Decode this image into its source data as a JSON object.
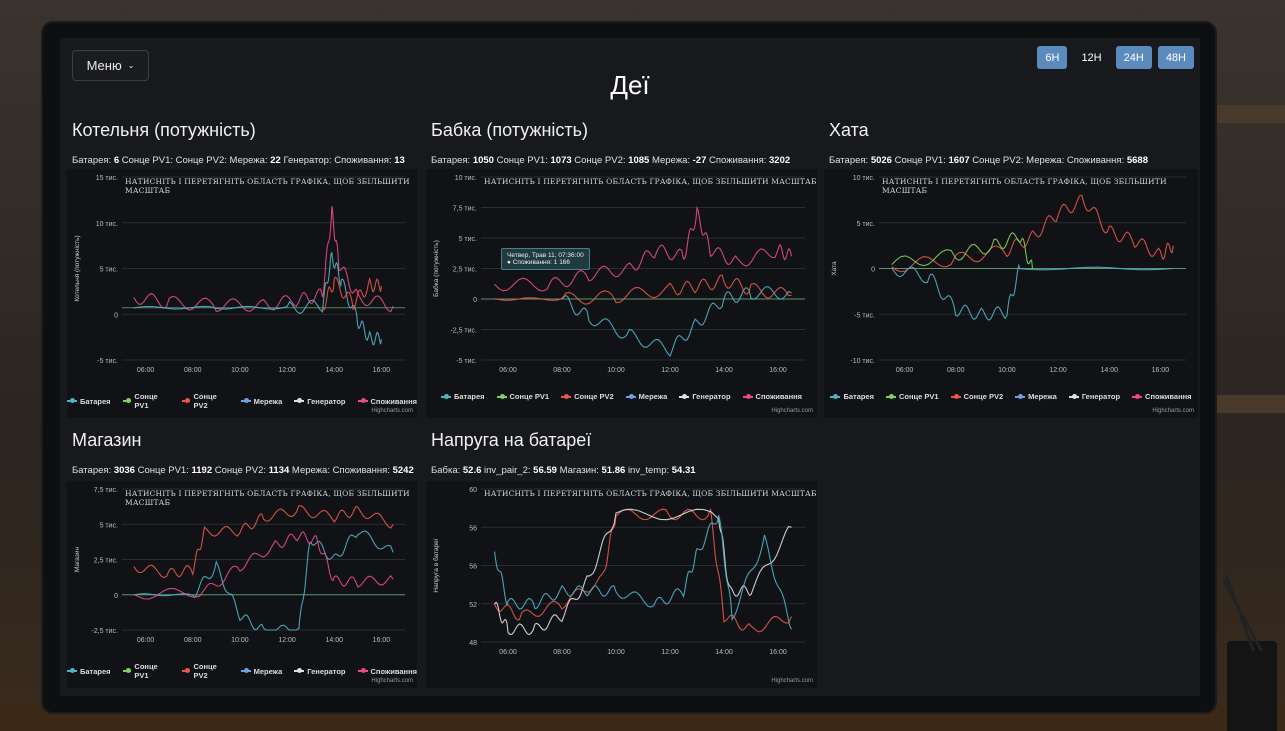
{
  "header": {
    "title": "Деї",
    "menu_label": "Меню",
    "ranges": [
      {
        "label": "6H",
        "active": true
      },
      {
        "label": "12H",
        "active": false
      },
      {
        "label": "24H",
        "active": true
      },
      {
        "label": "48H",
        "active": true
      }
    ]
  },
  "common": {
    "zoom_hint": "НАТИСНІТЬ І ПЕРЕТЯГНІТЬ ОБЛАСТЬ ГРАФІКА, ЩОБ ЗБІЛЬШИТИ МАСШТАБ",
    "credits": "Highcharts.com",
    "time_ticks": [
      "06:00",
      "08:00",
      "10:00",
      "12:00",
      "14:00",
      "16:00"
    ]
  },
  "colors": {
    "battery": "#4fb3c7",
    "pv1": "#7fd35a",
    "pv2": "#e8574a",
    "grid": "#6fa0e0",
    "generator": "#e0e0e0",
    "consumption": "#e84a8c"
  },
  "panels": [
    {
      "title": "Котельня (потужність)",
      "stats": [
        {
          "label": "Батарея:",
          "value": "6"
        },
        {
          "label": "Сонце PV1:",
          "value": ""
        },
        {
          "label": "Сонце PV2:",
          "value": ""
        },
        {
          "label": "Мережа:",
          "value": "22"
        },
        {
          "label": "Генератор:",
          "value": ""
        },
        {
          "label": "Споживання:",
          "value": "13"
        }
      ],
      "chart": {
        "ylabel": "Котельня (потужність)",
        "yticks": [
          "15 тис.",
          "10 тис.",
          "5 тис.",
          "0",
          "-5 тис."
        ],
        "legend": [
          "Батарея",
          "Сонце PV1",
          "Сонце PV2",
          "Мережа",
          "Генератор",
          "Споживання"
        ]
      }
    },
    {
      "title": "Бабка (потужність)",
      "stats": [
        {
          "label": "Батарея:",
          "value": "1050"
        },
        {
          "label": "Сонце PV1:",
          "value": "1073"
        },
        {
          "label": "Сонце PV2:",
          "value": "1085"
        },
        {
          "label": "Мережа:",
          "value": "-27"
        },
        {
          "label": "Споживання:",
          "value": "3202"
        }
      ],
      "chart": {
        "ylabel": "Бабка (потужність)",
        "yticks": [
          "10 тис.",
          "7,5 тис.",
          "5 тис.",
          "2,5 тис.",
          "0",
          "-2,5 тис.",
          "-5 тис."
        ],
        "legend": [
          "Батарея",
          "Сонце PV1",
          "Сонце PV2",
          "Мережа",
          "Генератор",
          "Споживання"
        ],
        "tooltip": {
          "line1": "Четвер, Трав 11, 07:36:00",
          "line2": "Споживання: 1 166"
        }
      }
    },
    {
      "title": "Хата",
      "stats": [
        {
          "label": "Батарея:",
          "value": "5026"
        },
        {
          "label": "Сонце PV1:",
          "value": "1607"
        },
        {
          "label": "Сонце PV2:",
          "value": ""
        },
        {
          "label": "Мережа:",
          "value": ""
        },
        {
          "label": "Споживання:",
          "value": "5688"
        }
      ],
      "chart": {
        "ylabel": "Хата",
        "yticks": [
          "10 тис.",
          "5 тис.",
          "0",
          "-5 тис.",
          "-10 тис."
        ],
        "legend": [
          "Батарея",
          "Сонце PV1",
          "Сонце PV2",
          "Мережа",
          "Генератор",
          "Споживання"
        ]
      }
    },
    {
      "title": "Магазин",
      "stats": [
        {
          "label": "Батарея:",
          "value": "3036"
        },
        {
          "label": "Сонце PV1:",
          "value": "1192"
        },
        {
          "label": "Сонце PV2:",
          "value": "1134"
        },
        {
          "label": "Мережа:",
          "value": ""
        },
        {
          "label": "Споживання:",
          "value": "5242"
        }
      ],
      "chart": {
        "ylabel": "Магазин",
        "yticks": [
          "7,5 тис.",
          "5 тис.",
          "2,5 тис.",
          "0",
          "-2,5 тис."
        ],
        "legend": [
          "Батарея",
          "Сонце PV1",
          "Сонце PV2",
          "Мережа",
          "Генератор",
          "Споживання"
        ]
      }
    },
    {
      "title": "Напруга на батареї",
      "stats": [
        {
          "label": "Бабка:",
          "value": "52.6"
        },
        {
          "label": "inv_pair_2:",
          "value": "56.59"
        },
        {
          "label": "Магазин:",
          "value": "51.86"
        },
        {
          "label": "inv_temp:",
          "value": "54.31"
        }
      ],
      "chart": {
        "ylabel": "Напруга в батареї",
        "yticks": [
          "60",
          "56",
          "56",
          "52",
          "48"
        ],
        "legend": []
      }
    }
  ],
  "chart_data": [
    {
      "type": "line",
      "title": "Котельня (потужність)",
      "x_range": [
        "05:00",
        "17:00"
      ],
      "ylim": [
        -6000,
        15000
      ],
      "series": [
        {
          "name": "Споживання",
          "points": [
            [
              5.5,
              1200
            ],
            [
              7,
              600
            ],
            [
              9,
              300
            ],
            [
              11,
              300
            ],
            [
              12.5,
              900
            ],
            [
              13.5,
              1500
            ],
            [
              13.9,
              11000
            ],
            [
              14.2,
              5000
            ],
            [
              15,
              1200
            ],
            [
              16.5,
              200
            ]
          ]
        },
        {
          "name": "Батарея",
          "points": [
            [
              5.5,
              0
            ],
            [
              9,
              0
            ],
            [
              12,
              0
            ],
            [
              13.5,
              200
            ],
            [
              13.9,
              6000
            ],
            [
              14.3,
              3000
            ],
            [
              15,
              -1500
            ],
            [
              15.5,
              -3500
            ],
            [
              16,
              -3600
            ]
          ]
        },
        {
          "name": "Сонце PV2",
          "points": [
            [
              13.5,
              0
            ],
            [
              14,
              3000
            ],
            [
              14.8,
              500
            ],
            [
              15.5,
              2600
            ],
            [
              16,
              2500
            ]
          ]
        }
      ]
    },
    {
      "type": "line",
      "title": "Бабка (потужність)",
      "x_range": [
        "05:00",
        "17:00"
      ],
      "ylim": [
        -5000,
        10000
      ],
      "series": [
        {
          "name": "Споживання",
          "points": [
            [
              5.5,
              1200
            ],
            [
              7.6,
              1166
            ],
            [
              9,
              2000
            ],
            [
              10.5,
              2500
            ],
            [
              11.5,
              4000
            ],
            [
              12.5,
              3500
            ],
            [
              13,
              7000
            ],
            [
              13.5,
              4000
            ],
            [
              14.5,
              3000
            ],
            [
              16,
              4000
            ],
            [
              16.5,
              3500
            ]
          ]
        },
        {
          "name": "Батарея",
          "points": [
            [
              8,
              0
            ],
            [
              9,
              -1500
            ],
            [
              10.5,
              -3000
            ],
            [
              12,
              -4200
            ],
            [
              13,
              -2000
            ],
            [
              14,
              0
            ],
            [
              15,
              500
            ],
            [
              16.5,
              500
            ]
          ]
        },
        {
          "name": "Сонце PV2",
          "points": [
            [
              5.5,
              0
            ],
            [
              8,
              0
            ],
            [
              10,
              200
            ],
            [
              12,
              800
            ],
            [
              13,
              1000
            ],
            [
              14,
              1500
            ],
            [
              15,
              800
            ],
            [
              16.5,
              300
            ]
          ]
        }
      ]
    },
    {
      "type": "line",
      "title": "Хата",
      "x_range": [
        "05:00",
        "17:00"
      ],
      "ylim": [
        -10000,
        10000
      ],
      "series": [
        {
          "name": "Сонце PV2",
          "points": [
            [
              5.5,
              200
            ],
            [
              8,
              1000
            ],
            [
              10,
              2000
            ],
            [
              11,
              3500
            ],
            [
              12,
              6000
            ],
            [
              13,
              7500
            ],
            [
              14,
              4000
            ],
            [
              15,
              3000
            ],
            [
              16,
              1500
            ],
            [
              16.5,
              2500
            ]
          ]
        },
        {
          "name": "Сонце PV1",
          "points": [
            [
              5.5,
              500
            ],
            [
              8,
              1500
            ],
            [
              9.5,
              2500
            ],
            [
              10.5,
              3500
            ],
            [
              11,
              0
            ]
          ]
        },
        {
          "name": "Батарея",
          "points": [
            [
              5.5,
              0
            ],
            [
              7,
              -1000
            ],
            [
              8,
              -4500
            ],
            [
              9,
              -5000
            ],
            [
              10,
              -4800
            ],
            [
              10.5,
              0
            ],
            [
              16.5,
              0
            ]
          ]
        }
      ]
    },
    {
      "type": "line",
      "title": "Магазин",
      "x_range": [
        "05:00",
        "17:00"
      ],
      "ylim": [
        -2500,
        7500
      ],
      "series": [
        {
          "name": "Сонце PV2",
          "points": [
            [
              5.5,
              2000
            ],
            [
              7,
              1500
            ],
            [
              8,
              1800
            ],
            [
              8.5,
              4500
            ],
            [
              10,
              4500
            ],
            [
              11,
              5500
            ],
            [
              12.5,
              6000
            ],
            [
              14,
              5500
            ],
            [
              15,
              6000
            ],
            [
              16.5,
              5000
            ]
          ]
        },
        {
          "name": "Батарея",
          "points": [
            [
              5.5,
              0
            ],
            [
              8,
              0
            ],
            [
              9,
              2000
            ],
            [
              10,
              -1500
            ],
            [
              11,
              -2500
            ],
            [
              12.5,
              -2500
            ],
            [
              13,
              4000
            ],
            [
              14,
              2500
            ],
            [
              15,
              4500
            ],
            [
              16.5,
              3000
            ]
          ]
        },
        {
          "name": "Споживання",
          "points": [
            [
              5.5,
              0
            ],
            [
              8.5,
              200
            ],
            [
              10,
              2000
            ],
            [
              11.5,
              3500
            ],
            [
              12.5,
              4200
            ],
            [
              13.3,
              3800
            ],
            [
              14,
              1000
            ],
            [
              15,
              900
            ],
            [
              16.5,
              1100
            ]
          ]
        }
      ]
    },
    {
      "type": "line",
      "title": "Напруга на батареї",
      "x_range": [
        "05:00",
        "17:00"
      ],
      "ylim": [
        48,
        60
      ],
      "series": [
        {
          "name": "Бабка",
          "points": [
            [
              5.5,
              51
            ],
            [
              6.5,
              50
            ],
            [
              8,
              51
            ],
            [
              9.5,
              53
            ],
            [
              10,
              58
            ],
            [
              12,
              58
            ],
            [
              13.5,
              58
            ],
            [
              14,
              50
            ],
            [
              15,
              49
            ],
            [
              16.5,
              50
            ]
          ]
        },
        {
          "name": "inv_pair_2",
          "points": [
            [
              5.5,
              51
            ],
            [
              6,
              49
            ],
            [
              7,
              49
            ],
            [
              8,
              50
            ],
            [
              9,
              53
            ],
            [
              10,
              58
            ],
            [
              13.8,
              58
            ],
            [
              14.2,
              52
            ],
            [
              15,
              52
            ],
            [
              16.5,
              57
            ]
          ]
        },
        {
          "name": "Магазин",
          "points": [
            [
              5.5,
              55
            ],
            [
              6,
              51
            ],
            [
              7,
              51
            ],
            [
              8,
              52
            ],
            [
              9,
              52
            ],
            [
              10,
              52
            ],
            [
              11.5,
              51
            ],
            [
              12.5,
              52
            ],
            [
              13,
              55
            ],
            [
              13.8,
              58
            ],
            [
              14.3,
              50
            ],
            [
              15.5,
              56
            ],
            [
              16.5,
              49
            ]
          ]
        }
      ]
    }
  ]
}
